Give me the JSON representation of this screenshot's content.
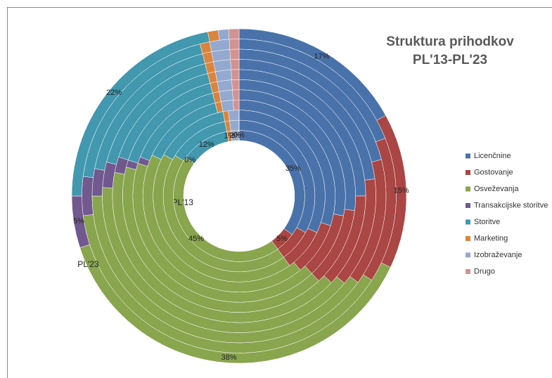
{
  "chart_data": {
    "type": "multi-donut",
    "title": "Struktura prihodkov",
    "subtitle": "PL'13-PL'23",
    "categories": [
      "PL'13",
      null,
      null,
      null,
      null,
      null,
      null,
      null,
      null,
      null,
      "PL'23"
    ],
    "series": [
      {
        "name": "Licenčnine",
        "color": "#4a72aa",
        "values": [
          35,
          33,
          32,
          30,
          28,
          27,
          25,
          23,
          21,
          19,
          17
        ],
        "value_labels": [
          "35%",
          null,
          null,
          null,
          null,
          null,
          null,
          null,
          null,
          null,
          "17%"
        ]
      },
      {
        "name": "Gostovanje",
        "color": "#aa4643",
        "values": [
          5,
          7,
          8,
          9,
          10,
          11,
          12,
          13,
          14,
          15,
          15
        ],
        "value_labels": [
          "5%",
          null,
          null,
          null,
          null,
          null,
          null,
          null,
          null,
          null,
          "15%"
        ]
      },
      {
        "name": "Osveževanja",
        "color": "#89a54e",
        "values": [
          45,
          44,
          43,
          43,
          42,
          41,
          41,
          40,
          40,
          39,
          38
        ],
        "value_labels": [
          "45%",
          null,
          null,
          null,
          null,
          null,
          null,
          null,
          null,
          null,
          "38%"
        ]
      },
      {
        "name": "Transakcijske storitve",
        "color": "#71588f",
        "values": [
          0,
          0,
          0,
          0,
          1,
          1,
          2,
          3,
          3,
          4,
          5
        ],
        "value_labels": [
          "0%",
          null,
          null,
          null,
          null,
          null,
          null,
          null,
          null,
          null,
          "5%"
        ]
      },
      {
        "name": "Storitve",
        "color": "#4198af",
        "values": [
          12,
          13,
          14,
          14,
          15,
          16,
          16,
          17,
          18,
          19,
          22
        ],
        "value_labels": [
          "12%",
          null,
          null,
          null,
          null,
          null,
          null,
          null,
          null,
          null,
          "22%"
        ]
      },
      {
        "name": "Marketing",
        "color": "#db843d",
        "values": [
          1,
          1,
          1,
          1,
          1,
          1,
          1,
          1,
          1,
          1,
          1
        ],
        "value_labels": [
          "1%",
          null,
          null,
          null,
          null,
          null,
          null,
          null,
          null,
          null,
          null
        ]
      },
      {
        "name": "Izobraževanje",
        "color": "#93a9cf",
        "values": [
          2,
          2,
          2,
          2,
          2,
          2,
          2,
          2,
          2,
          2,
          1
        ],
        "value_labels": [
          "2%",
          null,
          null,
          null,
          null,
          null,
          null,
          null,
          null,
          null,
          null
        ]
      },
      {
        "name": "Drugo",
        "color": "#d19392",
        "values": [
          0,
          0,
          0,
          1,
          1,
          1,
          1,
          1,
          1,
          1,
          1
        ],
        "value_labels": [
          "0%",
          null,
          null,
          null,
          null,
          null,
          null,
          null,
          null,
          null,
          null
        ]
      }
    ],
    "legend": "right"
  }
}
